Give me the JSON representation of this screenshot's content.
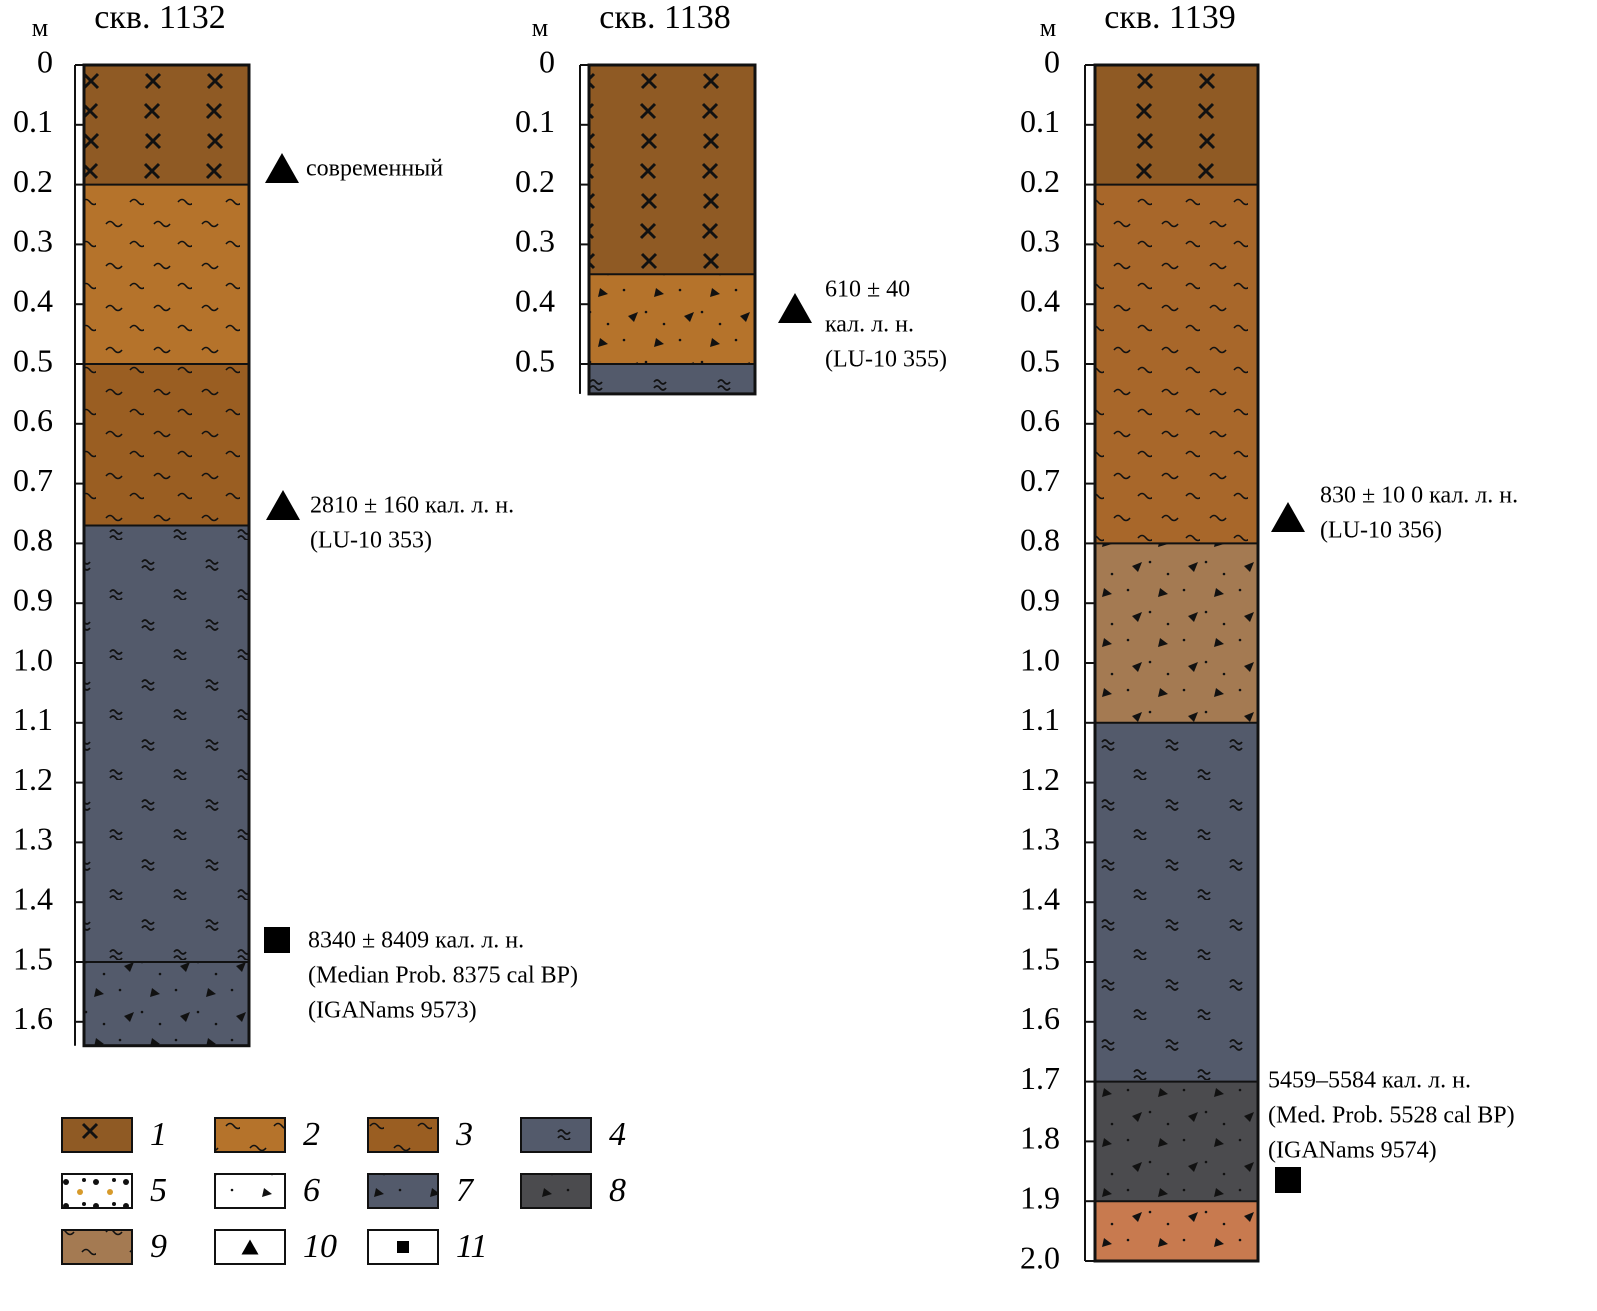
{
  "columns": [
    {
      "title": "скв. 1132",
      "unit": "м",
      "ylim": [
        0,
        1.64
      ],
      "yticks": [
        0,
        0.1,
        0.2,
        0.3,
        0.4,
        0.5,
        0.6,
        0.7,
        0.8,
        0.9,
        {
          "value": 1,
          "label": "1.0"
        },
        1.1,
        1.2,
        1.3,
        1.4,
        1.5,
        1.6
      ],
      "layers": [
        {
          "top": 0,
          "bottom": 0.2,
          "color": "#8f5a24"
        },
        {
          "top": 0.2,
          "bottom": 0.5,
          "color": "#b5732b"
        },
        {
          "top": 0.5,
          "bottom": 0.77,
          "color": "#9a5e22"
        },
        {
          "top": 0.77,
          "bottom": 1.5,
          "color": "#535a6b"
        },
        {
          "top": 1.5,
          "bottom": 1.64,
          "color": "#535a6b"
        }
      ],
      "annotations": [
        {
          "marker": "triangle",
          "lines": [
            "современный"
          ]
        },
        {
          "marker": "triangle",
          "lines": [
            "2810 ± 160 кал. л. н.",
            "(LU-10 353)"
          ]
        },
        {
          "marker": "square",
          "lines": [
            "8340 ± 8409 кал. л. н.",
            "(Median Prob. 8375 cal BP)",
            "(IGANams 9573)"
          ]
        }
      ]
    },
    {
      "title": "скв. 1138",
      "unit": "м",
      "ylim": [
        0,
        0.55
      ],
      "yticks": [
        0,
        0.1,
        0.2,
        0.3,
        0.4,
        0.5
      ],
      "layers": [
        {
          "top": 0,
          "bottom": 0.35,
          "color": "#8f5a24"
        },
        {
          "top": 0.35,
          "bottom": 0.5,
          "color": "#b5732b"
        },
        {
          "top": 0.5,
          "bottom": 0.55,
          "color": "#535a6b"
        }
      ],
      "annotations": [
        {
          "marker": "triangle",
          "lines": [
            "610 ± 40",
            "кал. л. н.",
            "(LU-10 355)"
          ]
        }
      ]
    },
    {
      "title": "скв. 1139",
      "unit": "м",
      "ylim": [
        0,
        2
      ],
      "yticks": [
        0,
        0.1,
        0.2,
        0.3,
        0.4,
        0.5,
        0.6,
        0.7,
        0.8,
        0.9,
        {
          "value": 1,
          "label": "1.0"
        },
        1.1,
        1.2,
        1.3,
        1.4,
        1.5,
        1.6,
        1.7,
        1.8,
        1.9,
        {
          "value": 2,
          "label": "2.0"
        }
      ],
      "layers": [
        {
          "top": 0,
          "bottom": 0.2,
          "color": "#8f5a24"
        },
        {
          "top": 0.2,
          "bottom": 0.8,
          "color": "#a8672a"
        },
        {
          "top": 0.8,
          "bottom": 1.1,
          "color": "#a47a52"
        },
        {
          "top": 1.1,
          "bottom": 1.7,
          "color": "#535a6b"
        },
        {
          "top": 1.7,
          "bottom": 1.9,
          "color": "#4b4b4e"
        },
        {
          "top": 1.9,
          "bottom": 2,
          "color": "#c87a4f"
        }
      ],
      "annotations": [
        {
          "marker": "triangle",
          "lines": [
            "830 ± 10 0 кал. л. н.",
            "(LU-10 356)"
          ]
        },
        {
          "marker": "square",
          "lines": [
            "5459–5584 кал. л. н.",
            "(Med. Prob. 5528 cal BP)",
            "(IGANams 9574)"
          ]
        }
      ]
    }
  ],
  "legend": [
    {
      "label": "1",
      "color": "#8f5a24"
    },
    {
      "label": "2",
      "color": "#b5732b"
    },
    {
      "label": "3",
      "color": "#9a5e22"
    },
    {
      "label": "4",
      "color": "#535a6b"
    },
    {
      "label": "5",
      "color": "#ffffff"
    },
    {
      "label": "6",
      "color": "#ffffff"
    },
    {
      "label": "7",
      "color": "#535a6b"
    },
    {
      "label": "8",
      "color": "#4b4b4e"
    },
    {
      "label": "9",
      "color": "#a47a52"
    },
    {
      "label": "10",
      "color": "#ffffff"
    },
    {
      "label": "11",
      "color": "#ffffff"
    }
  ]
}
